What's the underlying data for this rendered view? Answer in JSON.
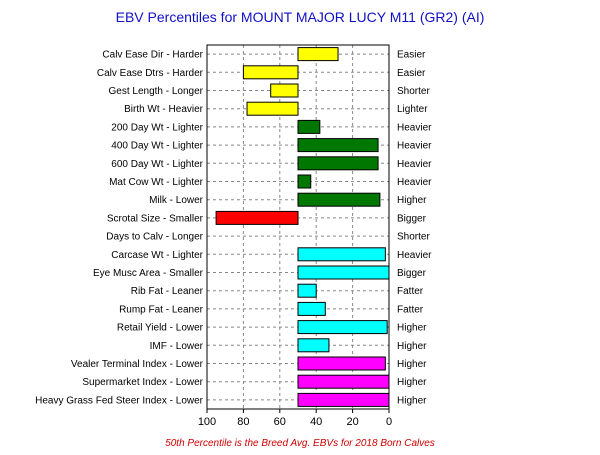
{
  "chart_data": {
    "type": "bar",
    "orientation": "horizontal",
    "title": "EBV Percentiles for MOUNT MAJOR LUCY M11 (GR2) (AI)",
    "footnote": "50th Percentile is the Breed Avg. EBVs for 2018 Born Calves",
    "x_axis": {
      "ticks": [
        100,
        80,
        60,
        40,
        20,
        0
      ],
      "range": [
        100,
        0
      ],
      "reversed": true
    },
    "grid": true,
    "baseline": 50,
    "colors": {
      "yellow": "#ffff00",
      "green": "#007700",
      "red": "#ff0000",
      "cyan": "#00ffff",
      "magenta": "#ff00ff"
    },
    "rows": [
      {
        "label": "Calv Ease Dir - Harder",
        "right": "Easier",
        "value": 28,
        "color": "yellow"
      },
      {
        "label": "Calv Ease Dtrs - Harder",
        "right": "Easier",
        "value": 80,
        "color": "yellow"
      },
      {
        "label": "Gest Length - Longer",
        "right": "Shorter",
        "value": 65,
        "color": "yellow"
      },
      {
        "label": "Birth Wt - Heavier",
        "right": "Lighter",
        "value": 78,
        "color": "yellow"
      },
      {
        "label": "200 Day Wt - Lighter",
        "right": "Heavier",
        "value": 38,
        "color": "green"
      },
      {
        "label": "400 Day Wt - Lighter",
        "right": "Heavier",
        "value": 6,
        "color": "green"
      },
      {
        "label": "600 Day Wt - Lighter",
        "right": "Heavier",
        "value": 6,
        "color": "green"
      },
      {
        "label": "Mat Cow Wt - Lighter",
        "right": "Heavier",
        "value": 43,
        "color": "green"
      },
      {
        "label": "Milk - Lower",
        "right": "Higher",
        "value": 5,
        "color": "green"
      },
      {
        "label": "Scrotal Size - Smaller",
        "right": "Bigger",
        "value": 95,
        "color": "red"
      },
      {
        "label": "Days to Calv - Longer",
        "right": "Shorter",
        "value": null,
        "color": "yellow"
      },
      {
        "label": "Carcase Wt - Lighter",
        "right": "Heavier",
        "value": 2,
        "color": "cyan"
      },
      {
        "label": "Eye Musc Area - Smaller",
        "right": "Bigger",
        "value": 0,
        "color": "cyan"
      },
      {
        "label": "Rib Fat - Leaner",
        "right": "Fatter",
        "value": 40,
        "color": "cyan"
      },
      {
        "label": "Rump Fat - Leaner",
        "right": "Fatter",
        "value": 35,
        "color": "cyan"
      },
      {
        "label": "Retail Yield - Lower",
        "right": "Higher",
        "value": 1,
        "color": "cyan"
      },
      {
        "label": "IMF - Lower",
        "right": "Higher",
        "value": 33,
        "color": "cyan"
      },
      {
        "label": "Vealer Terminal Index - Lower",
        "right": "Higher",
        "value": 2,
        "color": "magenta"
      },
      {
        "label": "Supermarket Index - Lower",
        "right": "Higher",
        "value": 0,
        "color": "magenta"
      },
      {
        "label": "Heavy Grass Fed Steer Index - Lower",
        "right": "Higher",
        "value": 0,
        "color": "magenta"
      }
    ]
  }
}
